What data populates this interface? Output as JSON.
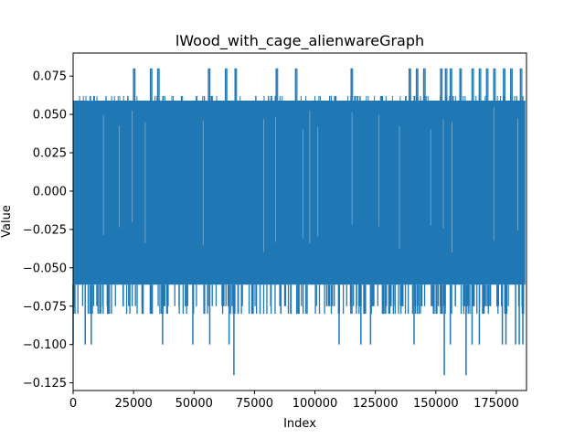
{
  "chart_data": {
    "type": "line",
    "title": "lWood_with_cage_alienwareGraph",
    "xlabel": "Index",
    "ylabel": "Value",
    "xlim": [
      0,
      187500
    ],
    "ylim": [
      -0.13,
      0.09
    ],
    "xticks": [
      0,
      25000,
      50000,
      75000,
      100000,
      125000,
      150000,
      175000
    ],
    "xtick_labels": [
      "0",
      "25000",
      "50000",
      "75000",
      "100000",
      "125000",
      "150000",
      "175000"
    ],
    "yticks": [
      -0.125,
      -0.1,
      -0.075,
      -0.05,
      -0.025,
      0.0,
      0.025,
      0.05,
      0.075
    ],
    "ytick_labels": [
      "−0.125",
      "−0.100",
      "−0.075",
      "−0.050",
      "−0.025",
      "0.000",
      "0.025",
      "0.050",
      "0.075"
    ],
    "grid": false,
    "series": [
      {
        "color": "#1f77b4",
        "x_range": [
          0,
          187000
        ],
        "band_upper": 0.059,
        "band_lower": -0.061,
        "peaks_high": [
          {
            "x": 25000,
            "y": 0.08
          },
          {
            "x": 32000,
            "y": 0.08
          },
          {
            "x": 35000,
            "y": 0.08
          },
          {
            "x": 56000,
            "y": 0.08
          },
          {
            "x": 63000,
            "y": 0.08
          },
          {
            "x": 67000,
            "y": 0.08
          },
          {
            "x": 84000,
            "y": 0.08
          },
          {
            "x": 92000,
            "y": 0.08
          },
          {
            "x": 115000,
            "y": 0.08
          },
          {
            "x": 139000,
            "y": 0.08
          },
          {
            "x": 142000,
            "y": 0.08
          },
          {
            "x": 145000,
            "y": 0.08
          },
          {
            "x": 152000,
            "y": 0.08
          },
          {
            "x": 154000,
            "y": 0.08
          },
          {
            "x": 156000,
            "y": 0.08
          },
          {
            "x": 160000,
            "y": 0.08
          },
          {
            "x": 165000,
            "y": 0.08
          },
          {
            "x": 168000,
            "y": 0.08
          },
          {
            "x": 171000,
            "y": 0.08
          },
          {
            "x": 174000,
            "y": 0.08
          },
          {
            "x": 178000,
            "y": 0.08
          },
          {
            "x": 181000,
            "y": 0.08
          },
          {
            "x": 185000,
            "y": 0.08
          }
        ],
        "peaks_low": [
          {
            "x": 0,
            "y": -0.1
          },
          {
            "x": 5000,
            "y": -0.1
          },
          {
            "x": 7500,
            "y": -0.1
          },
          {
            "x": 37000,
            "y": -0.1
          },
          {
            "x": 49500,
            "y": -0.1
          },
          {
            "x": 56500,
            "y": -0.1
          },
          {
            "x": 64500,
            "y": -0.1
          },
          {
            "x": 66500,
            "y": -0.12
          },
          {
            "x": 110000,
            "y": -0.1
          },
          {
            "x": 119000,
            "y": -0.1
          },
          {
            "x": 123000,
            "y": -0.1
          },
          {
            "x": 141000,
            "y": -0.1
          },
          {
            "x": 153500,
            "y": -0.12
          },
          {
            "x": 156000,
            "y": -0.1
          },
          {
            "x": 162500,
            "y": -0.12
          },
          {
            "x": 165000,
            "y": -0.1
          },
          {
            "x": 168000,
            "y": -0.1
          },
          {
            "x": 177500,
            "y": -0.1
          },
          {
            "x": 179000,
            "y": -0.1
          },
          {
            "x": 183000,
            "y": -0.1
          },
          {
            "x": 184500,
            "y": -0.1
          },
          {
            "x": 186000,
            "y": -0.1
          }
        ]
      }
    ]
  }
}
